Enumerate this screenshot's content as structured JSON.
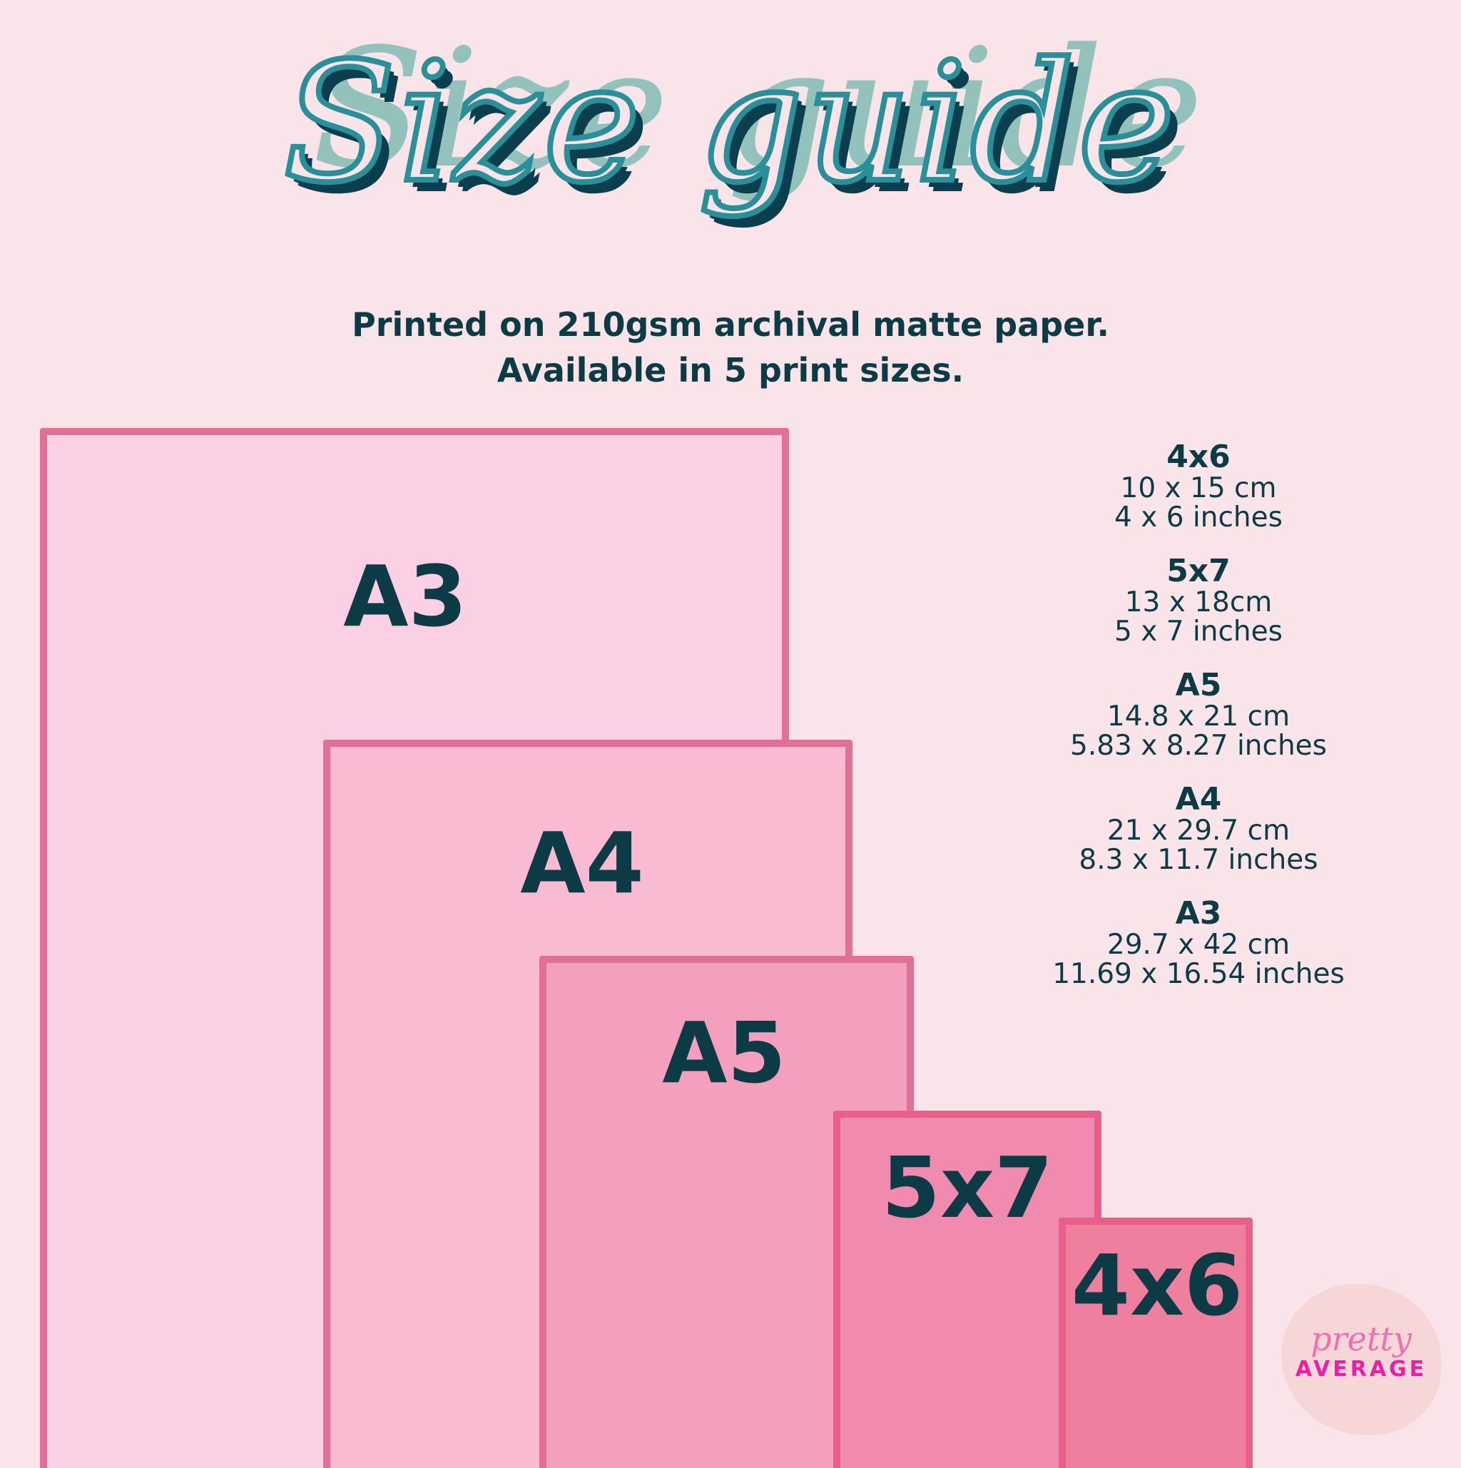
{
  "title": "Size guide",
  "subtitle": [
    "Printed on 210gsm archival matte paper.",
    "Available in 5 print sizes."
  ],
  "sizes": [
    {
      "name": "A3",
      "cm": "29.7 x 42 cm",
      "in": "11.69 x 16.54 inches",
      "fill": "#fbd0e4"
    },
    {
      "name": "A4",
      "cm": "21 x 29.7 cm",
      "in": "8.3 x 11.7 inches",
      "fill": "#f9bbd2"
    },
    {
      "name": "A5",
      "cm": "14.8 x 21 cm",
      "in": "5.83 x 8.27 inches",
      "fill": "#f59fbe"
    },
    {
      "name": "5x7",
      "cm": "13 x 18cm",
      "in": "5 x 7 inches",
      "fill": "#f08aae"
    },
    {
      "name": "4x6",
      "cm": "10 x 15 cm",
      "in": "4 x 6 inches",
      "fill": "#ef7f9f"
    }
  ],
  "logo": {
    "script": "pretty",
    "word": "AVERAGE"
  },
  "colors": {
    "background": "#f9e4ea",
    "text": "#0d3b45",
    "border": "#e07096"
  }
}
